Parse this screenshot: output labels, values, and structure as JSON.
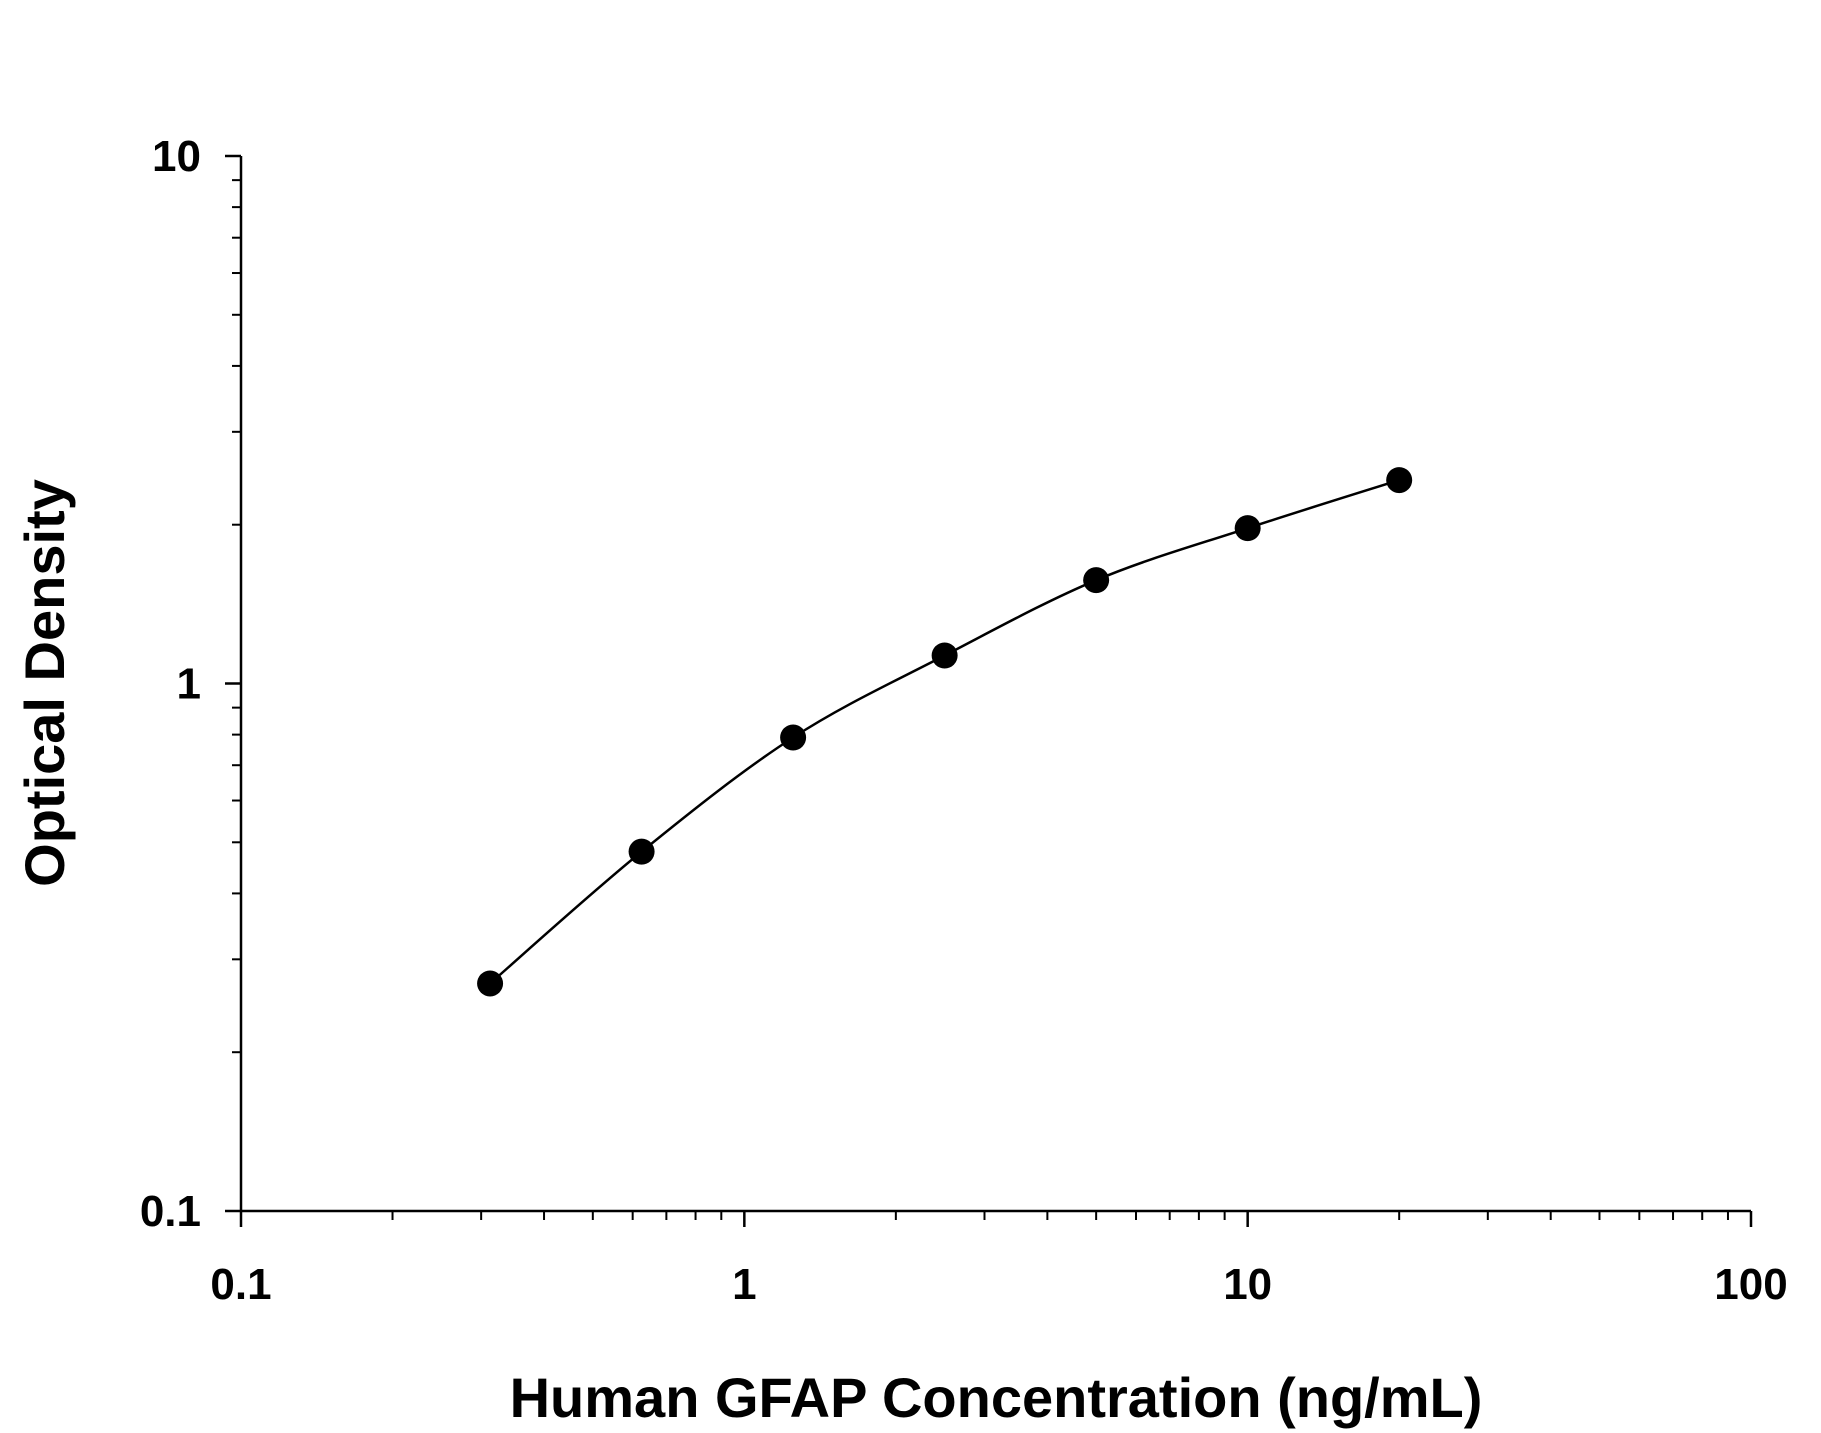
{
  "chart_data": {
    "type": "scatter",
    "title": "",
    "xlabel": "Human GFAP Concentration (ng/mL)",
    "ylabel": "Optical Density",
    "x_scale": "log",
    "y_scale": "log",
    "xlim": [
      0.1,
      100
    ],
    "ylim": [
      0.1,
      10
    ],
    "x_ticks": [
      "0.1",
      "1",
      "10",
      "100"
    ],
    "y_ticks": [
      "0.1",
      "1",
      "10"
    ],
    "grid": false,
    "legend": "none",
    "series": [
      {
        "x": [
          0.3125,
          0.625,
          1.25,
          2.5,
          5,
          10,
          20
        ],
        "y": [
          0.27,
          0.48,
          0.79,
          1.13,
          1.57,
          1.97,
          2.43
        ],
        "marker": "filled-circle",
        "fit_curve": true,
        "color": "#000000"
      }
    ]
  }
}
